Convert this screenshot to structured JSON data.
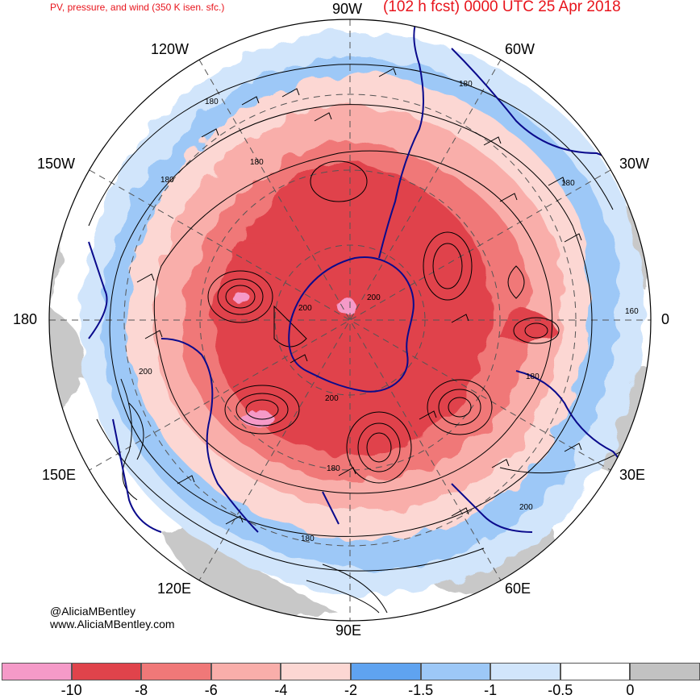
{
  "header": {
    "subtitle": "PV, pressure, and wind (350 K isen. sfc.)",
    "valid": "(102 h fcst) 0000 UTC 25 Apr 2018"
  },
  "longitudes": {
    "top": "90W",
    "top_left": "120W",
    "top_right": "60W",
    "upper_left": "150W",
    "upper_right": "30W",
    "left": "180",
    "right": "0",
    "lower_left": "150E",
    "lower_right": "30E",
    "bottom_left": "120E",
    "bottom_right": "60E",
    "bottom": "90E"
  },
  "contour_labels": [
    "180",
    "180",
    "180",
    "180",
    "180",
    "180",
    "180",
    "180",
    "200",
    "200",
    "200",
    "200",
    "200",
    "160",
    "180",
    "180",
    "180"
  ],
  "credits": {
    "handle": "@AliciaMBentley",
    "website": "www.AliciaMBentley.com"
  },
  "colorbar": {
    "ticks": [
      "-10",
      "-8",
      "-6",
      "-4",
      "-2",
      "-1.5",
      "-1",
      "-0.5",
      "0"
    ],
    "colors": [
      "#f59ac8",
      "#e0434b",
      "#f07878",
      "#f9aeaa",
      "#fcd7d3",
      "#5fa3f0",
      "#9dc8f7",
      "#d1e5fb",
      "#ffffff",
      "#c2c2c2"
    ]
  },
  "palette": {
    "pv_dark": "#e0434b",
    "pv_mid": "#f07878",
    "pv_light": "#f9aeaa",
    "pv_pale": "#fcd7d3",
    "blue_dark": "#5fa3f0",
    "blue_mid": "#9dc8f7",
    "blue_light": "#d1e5fb",
    "gray": "#c2c2c2",
    "coast": "#0a0a8c",
    "title_red": "#e8141c"
  }
}
